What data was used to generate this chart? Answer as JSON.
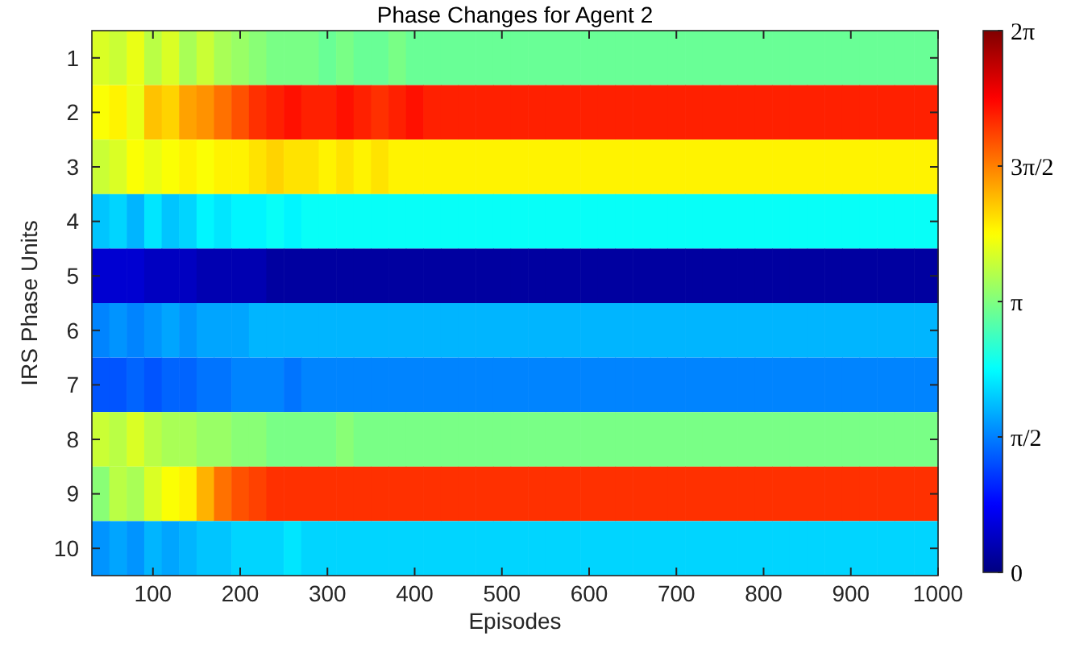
{
  "chart_data": {
    "type": "heatmap",
    "title": "Phase Changes for Agent 2",
    "xlabel": "Episodes",
    "ylabel": "IRS Phase Units",
    "x": [
      40,
      60,
      80,
      100,
      120,
      140,
      160,
      180,
      200,
      220,
      240,
      260,
      280,
      300,
      320,
      340,
      360,
      380,
      400,
      420,
      440,
      460,
      480,
      500,
      520,
      540,
      560,
      580,
      600,
      620,
      640,
      660,
      680,
      700,
      720,
      740,
      760,
      780,
      800,
      820,
      840,
      860,
      880,
      900,
      920,
      940,
      960,
      985
    ],
    "xlim": [
      30,
      1000
    ],
    "xticks": [
      100,
      200,
      300,
      400,
      500,
      600,
      700,
      800,
      900,
      1000
    ],
    "y_categories": [
      "1",
      "2",
      "3",
      "4",
      "5",
      "6",
      "7",
      "8",
      "9",
      "10"
    ],
    "cells": [
      [
        3.7,
        3.6,
        3.8,
        3.5,
        3.7,
        3.4,
        3.6,
        3.4,
        3.3,
        3.2,
        3.1,
        3.1,
        3.1,
        3.0,
        3.1,
        3.0,
        3.0,
        3.1,
        3.0,
        3.0,
        3.0,
        3.0,
        3.0,
        3.0,
        3.0,
        3.0,
        3.0,
        3.0,
        3.0,
        3.0,
        3.0,
        3.0,
        3.0,
        3.0,
        3.0,
        3.0,
        3.0,
        3.0,
        3.0,
        3.0,
        3.0,
        3.0,
        3.0,
        3.0,
        3.0,
        3.0,
        3.0,
        3.0
      ],
      [
        3.9,
        4.0,
        3.8,
        4.3,
        4.2,
        4.5,
        4.6,
        4.8,
        5.0,
        5.2,
        5.3,
        5.4,
        5.3,
        5.3,
        5.4,
        5.3,
        5.2,
        5.3,
        5.4,
        5.3,
        5.3,
        5.3,
        5.3,
        5.3,
        5.3,
        5.3,
        5.3,
        5.3,
        5.3,
        5.3,
        5.3,
        5.3,
        5.3,
        5.3,
        5.3,
        5.3,
        5.3,
        5.3,
        5.3,
        5.3,
        5.3,
        5.3,
        5.3,
        5.3,
        5.3,
        5.3,
        5.3,
        5.3
      ],
      [
        3.6,
        3.7,
        3.9,
        3.8,
        3.9,
        4.0,
        3.9,
        4.0,
        4.0,
        4.1,
        4.2,
        4.1,
        4.1,
        4.0,
        4.1,
        4.0,
        4.1,
        4.0,
        4.0,
        4.0,
        4.0,
        4.0,
        4.0,
        4.0,
        4.0,
        4.0,
        4.0,
        4.0,
        4.0,
        4.0,
        4.0,
        4.0,
        4.0,
        4.0,
        4.0,
        4.0,
        4.0,
        4.0,
        4.0,
        4.0,
        4.0,
        4.0,
        4.0,
        4.0,
        4.0,
        4.0,
        4.0,
        4.0
      ],
      [
        2.0,
        2.1,
        1.9,
        2.2,
        2.0,
        2.1,
        2.3,
        2.2,
        2.3,
        2.3,
        2.4,
        2.3,
        2.4,
        2.4,
        2.4,
        2.4,
        2.4,
        2.4,
        2.4,
        2.4,
        2.4,
        2.4,
        2.4,
        2.4,
        2.4,
        2.4,
        2.4,
        2.4,
        2.4,
        2.4,
        2.4,
        2.4,
        2.4,
        2.4,
        2.4,
        2.4,
        2.4,
        2.4,
        2.4,
        2.4,
        2.4,
        2.4,
        2.4,
        2.4,
        2.4,
        2.4,
        2.4,
        2.4
      ],
      [
        0.5,
        0.5,
        0.5,
        0.4,
        0.4,
        0.4,
        0.3,
        0.3,
        0.3,
        0.3,
        0.2,
        0.2,
        0.2,
        0.2,
        0.2,
        0.2,
        0.2,
        0.2,
        0.2,
        0.2,
        0.2,
        0.2,
        0.2,
        0.2,
        0.2,
        0.2,
        0.2,
        0.2,
        0.2,
        0.2,
        0.2,
        0.2,
        0.2,
        0.2,
        0.2,
        0.2,
        0.2,
        0.2,
        0.2,
        0.2,
        0.2,
        0.2,
        0.2,
        0.2,
        0.2,
        0.2,
        0.2,
        0.2
      ],
      [
        1.6,
        1.7,
        1.6,
        1.7,
        1.8,
        1.7,
        1.8,
        1.8,
        1.8,
        1.9,
        1.9,
        1.9,
        1.9,
        1.9,
        1.9,
        1.9,
        1.9,
        1.9,
        1.9,
        1.9,
        1.9,
        1.9,
        1.9,
        1.9,
        1.9,
        1.9,
        1.9,
        1.9,
        1.9,
        1.9,
        1.9,
        1.9,
        1.9,
        1.9,
        1.9,
        1.9,
        1.9,
        1.9,
        1.9,
        1.9,
        1.9,
        1.9,
        1.9,
        1.9,
        1.9,
        1.9,
        1.9,
        1.9
      ],
      [
        1.3,
        1.3,
        1.4,
        1.3,
        1.4,
        1.4,
        1.5,
        1.5,
        1.6,
        1.6,
        1.6,
        1.5,
        1.6,
        1.6,
        1.6,
        1.6,
        1.6,
        1.6,
        1.6,
        1.6,
        1.6,
        1.6,
        1.6,
        1.6,
        1.6,
        1.6,
        1.6,
        1.6,
        1.6,
        1.6,
        1.6,
        1.6,
        1.6,
        1.6,
        1.6,
        1.6,
        1.6,
        1.6,
        1.6,
        1.6,
        1.6,
        1.6,
        1.6,
        1.6,
        1.6,
        1.6,
        1.6,
        1.6
      ],
      [
        3.6,
        3.5,
        3.7,
        3.5,
        3.4,
        3.4,
        3.3,
        3.3,
        3.2,
        3.2,
        3.1,
        3.1,
        3.1,
        3.1,
        3.2,
        3.1,
        3.1,
        3.1,
        3.1,
        3.1,
        3.1,
        3.1,
        3.1,
        3.1,
        3.1,
        3.1,
        3.1,
        3.1,
        3.1,
        3.1,
        3.1,
        3.1,
        3.1,
        3.1,
        3.1,
        3.1,
        3.1,
        3.1,
        3.1,
        3.1,
        3.1,
        3.1,
        3.1,
        3.1,
        3.1,
        3.1,
        3.1,
        3.1
      ],
      [
        3.2,
        3.5,
        3.4,
        3.7,
        3.9,
        4.0,
        4.4,
        4.8,
        5.0,
        5.1,
        5.2,
        5.2,
        5.2,
        5.2,
        5.2,
        5.2,
        5.2,
        5.2,
        5.2,
        5.2,
        5.2,
        5.2,
        5.2,
        5.2,
        5.2,
        5.2,
        5.2,
        5.2,
        5.2,
        5.2,
        5.2,
        5.2,
        5.2,
        5.2,
        5.2,
        5.2,
        5.2,
        5.2,
        5.2,
        5.2,
        5.2,
        5.2,
        5.2,
        5.2,
        5.2,
        5.2,
        5.2,
        5.2
      ],
      [
        1.7,
        1.8,
        1.7,
        1.9,
        1.8,
        1.9,
        2.0,
        2.0,
        2.1,
        2.1,
        2.1,
        2.2,
        2.1,
        2.1,
        2.1,
        2.1,
        2.1,
        2.1,
        2.1,
        2.1,
        2.1,
        2.1,
        2.1,
        2.1,
        2.1,
        2.1,
        2.1,
        2.1,
        2.1,
        2.1,
        2.1,
        2.1,
        2.1,
        2.1,
        2.1,
        2.1,
        2.1,
        2.1,
        2.1,
        2.1,
        2.1,
        2.1,
        2.1,
        2.1,
        2.1,
        2.1,
        2.1,
        2.1
      ]
    ],
    "clim": [
      0,
      6.2832
    ],
    "cticks": [
      {
        "value": 0,
        "label": "0"
      },
      {
        "value": 1.5708,
        "label": "π/2"
      },
      {
        "value": 3.1416,
        "label": "π"
      },
      {
        "value": 4.7124,
        "label": "3π/2"
      },
      {
        "value": 6.2832,
        "label": "2π"
      }
    ]
  }
}
